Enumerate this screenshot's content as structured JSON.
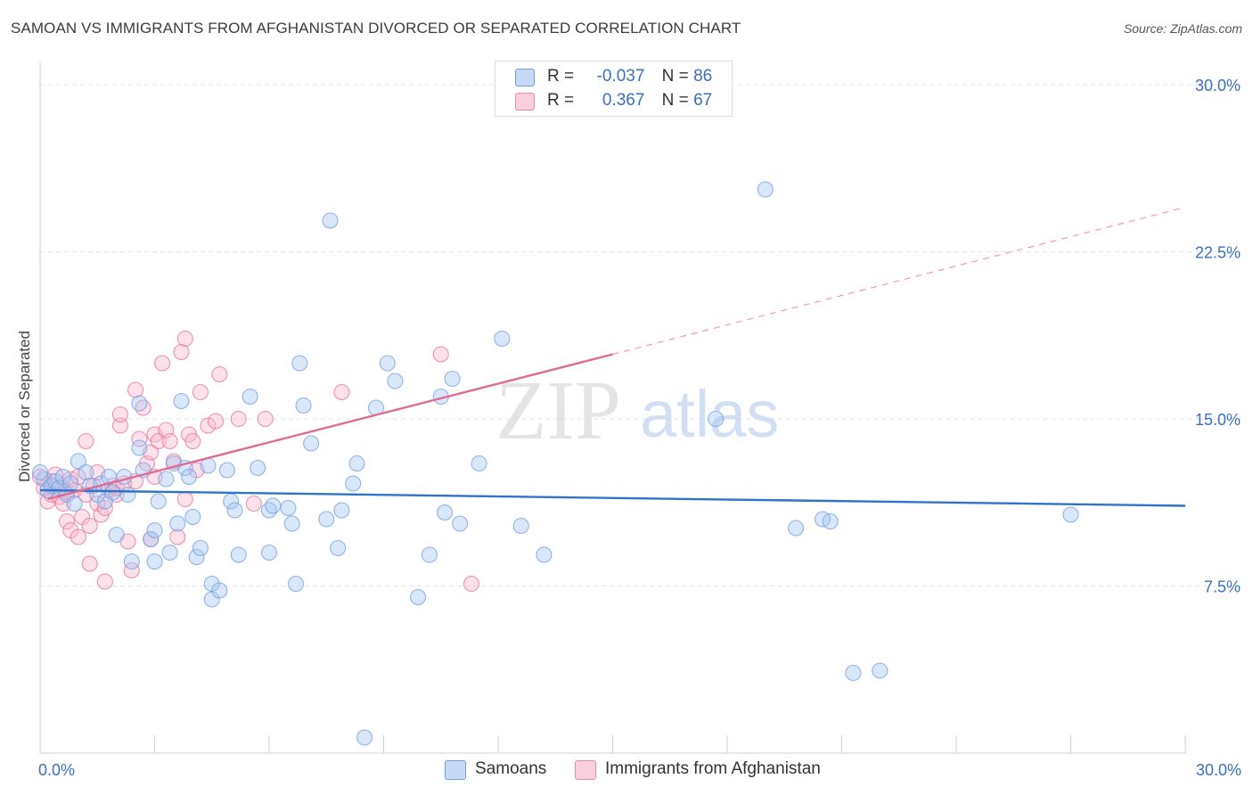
{
  "header": {
    "title": "SAMOAN VS IMMIGRANTS FROM AFGHANISTAN DIVORCED OR SEPARATED CORRELATION CHART",
    "source": "Source: ZipAtlas.com"
  },
  "watermark": {
    "text_zip": "ZIP",
    "text_atlas": "atlas"
  },
  "legend": {
    "rows": [
      {
        "r_label": "R =",
        "r_value": "-0.037",
        "n_label": "N =",
        "n_value": "86",
        "color": "#a8c6f0",
        "edge": "#6f9ee0"
      },
      {
        "r_label": "R =",
        "r_value": "0.367",
        "n_label": "N =",
        "n_value": "67",
        "color": "#f7b8cc",
        "edge": "#ea8aa8"
      }
    ]
  },
  "bottom_legend": {
    "items": [
      "Samoans",
      "Immigrants from Afghanistan"
    ]
  },
  "chart_data": {
    "type": "scatter",
    "title": "SAMOAN VS IMMIGRANTS FROM AFGHANISTAN DIVORCED OR SEPARATED CORRELATION CHART",
    "xlabel": "",
    "ylabel": "Divorced or Separated",
    "xlim": [
      0,
      30
    ],
    "ylim": [
      0,
      31
    ],
    "x_tick_labels": [
      "0.0%",
      "30.0%"
    ],
    "y_ticks": [
      7.5,
      15.0,
      22.5,
      30.0
    ],
    "y_tick_labels": [
      "7.5%",
      "15.0%",
      "22.5%",
      "30.0%"
    ],
    "grid": true,
    "legend_position": "top-center",
    "series": [
      {
        "name": "Samoans",
        "color": "#6f9ee0",
        "fill": "#a8c6f0",
        "trend": {
          "x": [
            0,
            30
          ],
          "y": [
            11.8,
            11.1
          ]
        },
        "points": [
          [
            0.1,
            12.3
          ],
          [
            0.2,
            11.8
          ],
          [
            0.3,
            12.0
          ],
          [
            0.4,
            12.2
          ],
          [
            0.5,
            11.9
          ],
          [
            0.6,
            12.4
          ],
          [
            0.7,
            11.6
          ],
          [
            0.8,
            12.1
          ],
          [
            0.9,
            11.2
          ],
          [
            1.0,
            13.1
          ],
          [
            1.2,
            12.6
          ],
          [
            1.3,
            12.0
          ],
          [
            1.5,
            11.6
          ],
          [
            1.6,
            12.1
          ],
          [
            1.7,
            11.3
          ],
          [
            1.8,
            12.4
          ],
          [
            1.9,
            11.7
          ],
          [
            2.0,
            9.8
          ],
          [
            2.2,
            12.4
          ],
          [
            2.3,
            11.6
          ],
          [
            2.4,
            8.6
          ],
          [
            2.6,
            15.7
          ],
          [
            2.6,
            13.7
          ],
          [
            2.7,
            12.7
          ],
          [
            2.9,
            9.6
          ],
          [
            3.0,
            10.0
          ],
          [
            3.0,
            8.6
          ],
          [
            3.1,
            11.3
          ],
          [
            3.3,
            12.3
          ],
          [
            3.4,
            9.0
          ],
          [
            3.5,
            13.0
          ],
          [
            3.6,
            10.3
          ],
          [
            3.7,
            15.8
          ],
          [
            3.8,
            12.8
          ],
          [
            3.9,
            12.4
          ],
          [
            4.0,
            10.6
          ],
          [
            4.1,
            8.8
          ],
          [
            4.2,
            9.2
          ],
          [
            4.4,
            12.9
          ],
          [
            4.5,
            7.6
          ],
          [
            4.5,
            6.9
          ],
          [
            4.7,
            7.3
          ],
          [
            4.9,
            12.7
          ],
          [
            5.0,
            11.3
          ],
          [
            5.1,
            10.9
          ],
          [
            5.2,
            8.9
          ],
          [
            5.5,
            16.0
          ],
          [
            5.7,
            12.8
          ],
          [
            6.0,
            9.0
          ],
          [
            6.0,
            10.9
          ],
          [
            6.1,
            11.1
          ],
          [
            6.5,
            11.0
          ],
          [
            6.6,
            10.3
          ],
          [
            6.7,
            7.6
          ],
          [
            6.8,
            17.5
          ],
          [
            6.9,
            15.6
          ],
          [
            7.1,
            13.9
          ],
          [
            7.5,
            10.5
          ],
          [
            7.6,
            23.9
          ],
          [
            7.8,
            9.2
          ],
          [
            7.9,
            10.9
          ],
          [
            8.2,
            12.1
          ],
          [
            8.3,
            13.0
          ],
          [
            8.5,
            0.7
          ],
          [
            8.8,
            15.5
          ],
          [
            9.1,
            17.5
          ],
          [
            9.3,
            16.7
          ],
          [
            9.9,
            7.0
          ],
          [
            10.2,
            8.9
          ],
          [
            10.5,
            16.0
          ],
          [
            10.6,
            10.8
          ],
          [
            10.8,
            16.8
          ],
          [
            11.0,
            10.3
          ],
          [
            11.5,
            13.0
          ],
          [
            12.1,
            18.6
          ],
          [
            12.6,
            10.2
          ],
          [
            13.2,
            8.9
          ],
          [
            17.7,
            15.0
          ],
          [
            19.0,
            25.3
          ],
          [
            19.8,
            10.1
          ],
          [
            20.5,
            10.5
          ],
          [
            20.7,
            10.4
          ],
          [
            21.3,
            3.6
          ],
          [
            22.0,
            3.7
          ],
          [
            27.0,
            10.7
          ],
          [
            0.0,
            12.6
          ]
        ]
      },
      {
        "name": "Immigrants from Afghanistan",
        "color": "#e8709a",
        "fill": "#f7b8cc",
        "trend": {
          "x": [
            0.2,
            15.0
          ],
          "y": [
            11.4,
            17.9
          ]
        },
        "trend_extended": {
          "x": [
            15.0,
            30.0
          ],
          "y": [
            17.9,
            24.5
          ]
        },
        "points": [
          [
            0.1,
            11.9
          ],
          [
            0.2,
            11.3
          ],
          [
            0.3,
            12.2
          ],
          [
            0.3,
            11.6
          ],
          [
            0.4,
            12.5
          ],
          [
            0.5,
            11.5
          ],
          [
            0.6,
            11.2
          ],
          [
            0.6,
            11.9
          ],
          [
            0.7,
            10.4
          ],
          [
            0.7,
            11.7
          ],
          [
            0.8,
            12.3
          ],
          [
            0.8,
            10.0
          ],
          [
            0.9,
            11.8
          ],
          [
            1.0,
            9.7
          ],
          [
            1.0,
            12.4
          ],
          [
            1.1,
            10.6
          ],
          [
            1.2,
            11.6
          ],
          [
            1.2,
            14.0
          ],
          [
            1.3,
            10.2
          ],
          [
            1.3,
            8.5
          ],
          [
            1.4,
            12.0
          ],
          [
            1.5,
            11.2
          ],
          [
            1.5,
            12.6
          ],
          [
            1.6,
            10.7
          ],
          [
            1.7,
            11.0
          ],
          [
            1.7,
            7.7
          ],
          [
            1.8,
            11.8
          ],
          [
            1.9,
            12.0
          ],
          [
            2.0,
            11.6
          ],
          [
            2.0,
            11.9
          ],
          [
            2.1,
            14.7
          ],
          [
            2.1,
            15.2
          ],
          [
            2.2,
            12.1
          ],
          [
            2.3,
            9.5
          ],
          [
            2.4,
            8.2
          ],
          [
            2.5,
            12.2
          ],
          [
            2.5,
            16.3
          ],
          [
            2.6,
            14.1
          ],
          [
            2.7,
            15.5
          ],
          [
            2.8,
            13.0
          ],
          [
            2.9,
            13.5
          ],
          [
            2.9,
            9.6
          ],
          [
            3.0,
            14.3
          ],
          [
            3.0,
            12.4
          ],
          [
            3.1,
            14.0
          ],
          [
            3.2,
            17.5
          ],
          [
            3.3,
            14.5
          ],
          [
            3.4,
            14.0
          ],
          [
            3.5,
            13.1
          ],
          [
            3.6,
            9.7
          ],
          [
            3.7,
            18.0
          ],
          [
            3.8,
            18.6
          ],
          [
            3.8,
            11.4
          ],
          [
            3.9,
            14.3
          ],
          [
            4.0,
            14.0
          ],
          [
            4.1,
            12.7
          ],
          [
            4.2,
            16.2
          ],
          [
            4.4,
            14.7
          ],
          [
            4.6,
            14.9
          ],
          [
            4.7,
            17.0
          ],
          [
            5.2,
            15.0
          ],
          [
            5.6,
            11.2
          ],
          [
            5.9,
            15.0
          ],
          [
            7.9,
            16.2
          ],
          [
            10.5,
            17.9
          ],
          [
            11.3,
            7.6
          ],
          [
            0.0,
            12.4
          ]
        ]
      }
    ]
  }
}
